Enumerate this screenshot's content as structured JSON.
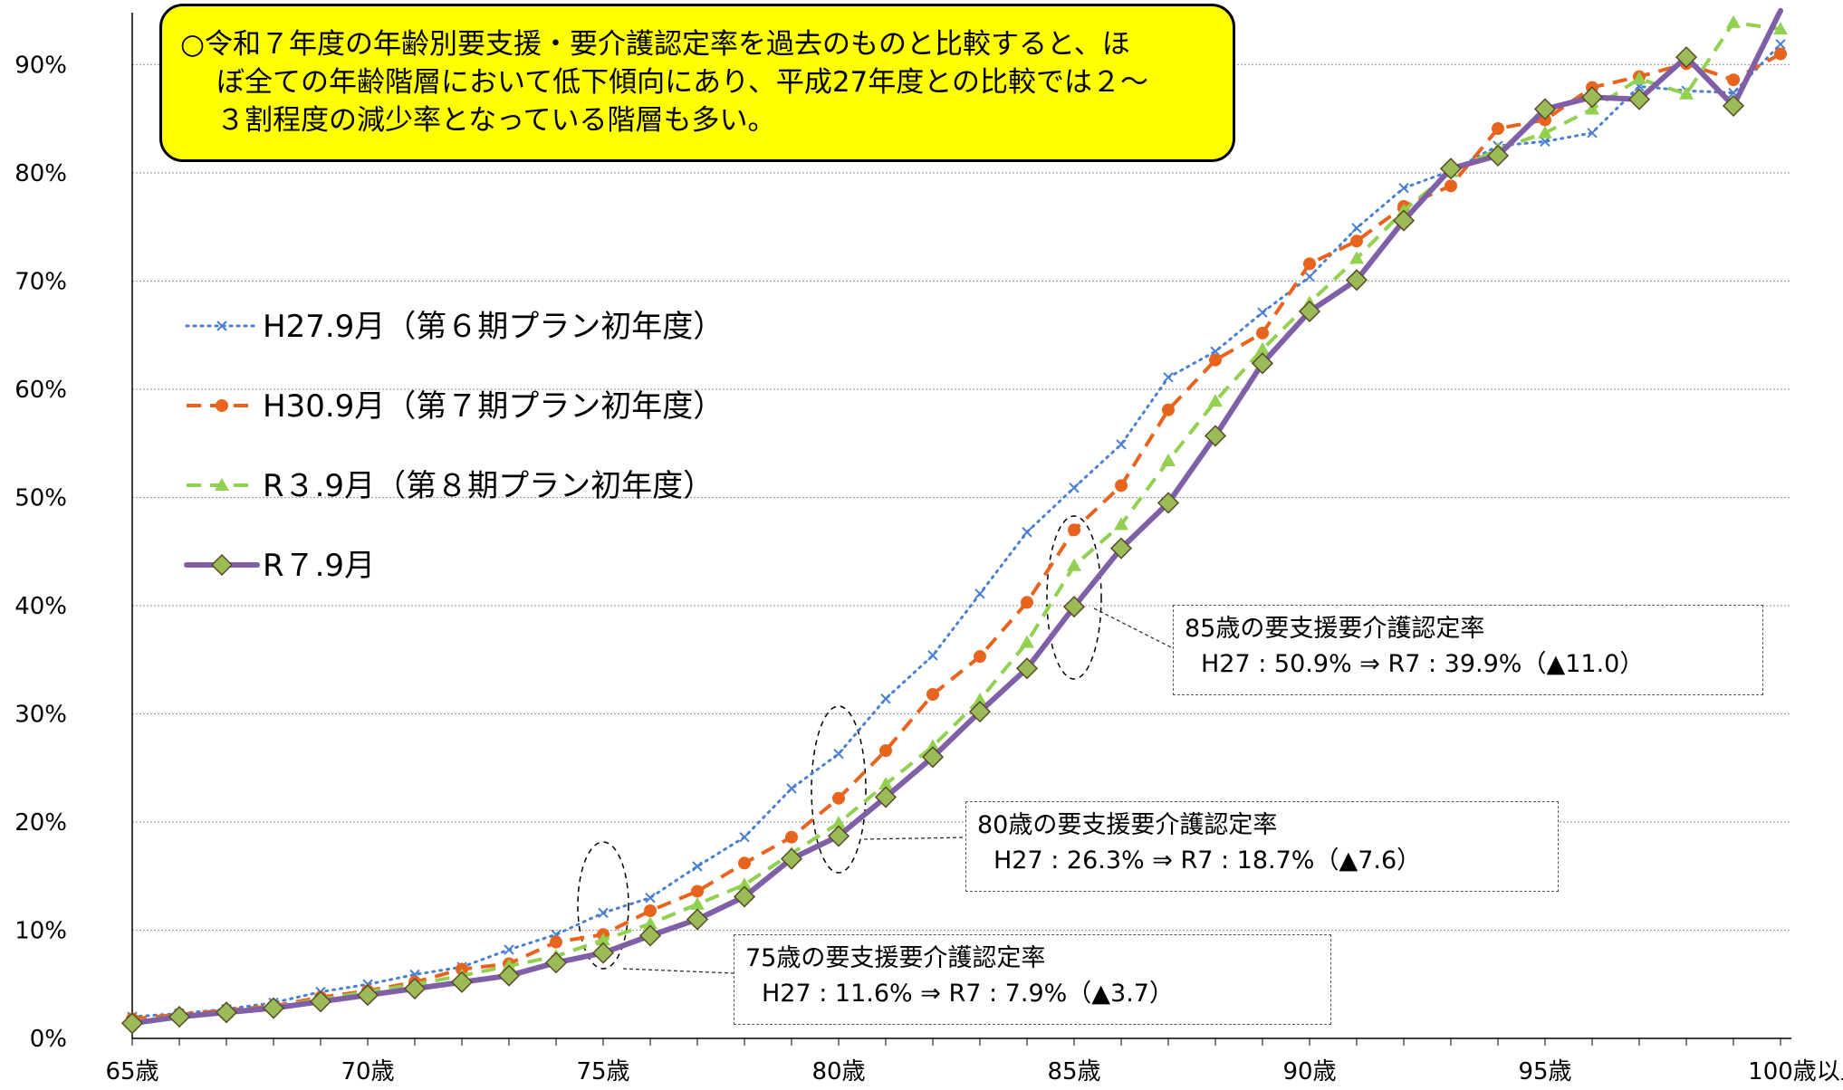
{
  "note": {
    "line1": "○令和７年度の年齢別要支援・要介護認定率を過去のものと比較すると、ほ",
    "line2": "ぼ全ての年齢階層において低下傾向にあり、平成27年度との比較では２～",
    "line3": "３割程度の減少率となっている階層も多い。"
  },
  "callouts": {
    "c85": {
      "title": "85歳の要支援要介護認定率",
      "detail": "H27 : 50.9%  ⇒  R7 : 39.9%（▲11.0）"
    },
    "c80": {
      "title": "80歳の要支援要介護認定率",
      "detail": "H27 : 26.3%  ⇒  R7 : 18.7%（▲7.6）"
    },
    "c75": {
      "title": "75歳の要支援要介護認定率",
      "detail": "H27 : 11.6%  ⇒  R7 : 7.9%（▲3.7）"
    }
  },
  "chart_data": {
    "type": "line",
    "x_labels": [
      "65歳",
      "70歳",
      "75歳",
      "80歳",
      "85歳",
      "90歳",
      "95歳",
      "100歳以上"
    ],
    "x_label_indices": [
      0,
      5,
      10,
      15,
      20,
      25,
      30,
      35
    ],
    "y_ticks": [
      "0%",
      "10%",
      "20%",
      "30%",
      "40%",
      "50%",
      "60%",
      "70%",
      "80%",
      "90%"
    ],
    "ylim": [
      0,
      90
    ],
    "grid": true,
    "legend_position": "left",
    "series": [
      {
        "name": "H27.9月（第６期プラン初年度）",
        "color": "#4a7fd0",
        "style": "dotted",
        "marker": "x",
        "values": [
          2.0,
          2.3,
          2.7,
          3.3,
          4.3,
          5.0,
          5.9,
          6.6,
          8.2,
          9.6,
          11.6,
          13.0,
          15.9,
          18.6,
          23.1,
          26.3,
          31.4,
          35.4,
          41.1,
          46.8,
          50.9,
          54.9,
          61.1,
          63.5,
          67.1,
          70.4,
          74.9,
          78.6,
          80.2,
          82.5,
          82.9,
          83.7,
          88.0,
          87.6,
          87.4,
          91.9
        ]
      },
      {
        "name": "H30.9月（第７期プラン初年度）",
        "color": "#e8641e",
        "style": "dashed",
        "marker": "circle",
        "values": [
          1.8,
          2.2,
          2.6,
          3.0,
          3.8,
          4.4,
          5.2,
          6.4,
          6.9,
          8.9,
          9.6,
          11.8,
          13.6,
          16.2,
          18.6,
          22.2,
          26.6,
          31.8,
          35.3,
          40.3,
          47.0,
          51.1,
          58.1,
          62.7,
          65.2,
          71.6,
          73.7,
          76.9,
          78.8,
          84.1,
          84.9,
          87.9,
          88.9,
          90.1,
          88.6,
          91.0
        ]
      },
      {
        "name": "R３.9月（第８期プラン初年度）",
        "color": "#92d050",
        "style": "dashed",
        "marker": "triangle",
        "values": [
          1.5,
          2.1,
          2.4,
          2.9,
          3.6,
          4.3,
          5.0,
          5.8,
          6.7,
          7.6,
          9.1,
          10.6,
          12.4,
          14.2,
          17.1,
          19.9,
          23.5,
          27.0,
          31.3,
          36.6,
          43.7,
          47.5,
          53.4,
          58.9,
          63.7,
          68.0,
          72.1,
          76.5,
          80.1,
          82.2,
          83.7,
          85.9,
          88.7,
          87.3,
          93.9,
          93.3
        ]
      },
      {
        "name": "R７.9月",
        "color": "#7f5fa6",
        "style": "solid",
        "marker": "diamond",
        "values": [
          1.4,
          2.0,
          2.4,
          2.8,
          3.4,
          4.0,
          4.6,
          5.2,
          5.8,
          7.0,
          7.9,
          9.5,
          11.0,
          13.1,
          16.6,
          18.7,
          22.3,
          26.0,
          30.2,
          34.2,
          39.9,
          45.3,
          49.5,
          55.7,
          62.4,
          67.2,
          70.1,
          75.6,
          80.4,
          81.6,
          85.9,
          87.0,
          86.8,
          90.7,
          86.2,
          95.0
        ]
      }
    ]
  }
}
